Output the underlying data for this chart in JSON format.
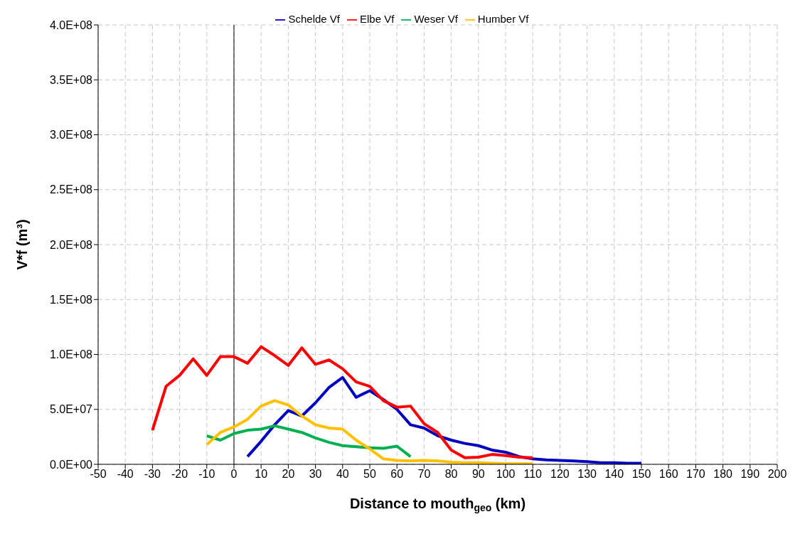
{
  "chart_data": {
    "type": "line",
    "xlabel": "Distance to mouth$_{geo}$ (km)",
    "ylabel": "V*f (m³)",
    "xlim": [
      -50,
      200
    ],
    "xticks": [
      -50,
      -40,
      -30,
      -20,
      -10,
      0,
      10,
      20,
      30,
      40,
      50,
      60,
      70,
      80,
      90,
      100,
      110,
      120,
      130,
      140,
      150,
      160,
      170,
      180,
      190,
      200
    ],
    "ylim": [
      0,
      400000000
    ],
    "yticks": [
      {
        "value": 0,
        "label": "0.0E+00"
      },
      {
        "value": 50000000,
        "label": "5.0E+07"
      },
      {
        "value": 100000000,
        "label": "1.0E+08"
      },
      {
        "value": 150000000,
        "label": "1.5E+08"
      },
      {
        "value": 200000000,
        "label": "2.0E+08"
      },
      {
        "value": 250000000,
        "label": "2.5E+08"
      },
      {
        "value": 300000000,
        "label": "3.0E+08"
      },
      {
        "value": 350000000,
        "label": "3.5E+08"
      },
      {
        "value": 400000000,
        "label": "4.0E+08"
      }
    ],
    "grid": true,
    "legend": "top",
    "marker": "none",
    "line_style": "solid",
    "ref_lines": [
      {
        "axis": "x",
        "value": 0,
        "color": "#000000",
        "line_style": "solid"
      }
    ],
    "series": [
      {
        "name": "Schelde Vf",
        "color": "#0000c0",
        "x": [
          5,
          10,
          15,
          20,
          25,
          30,
          35,
          40,
          45,
          50,
          55,
          60,
          65,
          70,
          75,
          80,
          85,
          90,
          95,
          100,
          105,
          110,
          115,
          120,
          125,
          130,
          135,
          140,
          145,
          150
        ],
        "values": [
          7000000,
          21000000,
          36000000,
          49000000,
          44000000,
          56000000,
          70000000,
          79000000,
          61000000,
          67000000,
          59000000,
          50000000,
          36000000,
          33000000,
          26000000,
          22000000,
          19000000,
          17000000,
          13000000,
          11000000,
          7000000,
          5000000,
          4000000,
          3500000,
          3000000,
          2500000,
          1500000,
          1500000,
          1000000,
          1000000
        ]
      },
      {
        "name": "Elbe Vf",
        "color": "#ff0000",
        "x": [
          -30,
          -25,
          -20,
          -15,
          -10,
          -5,
          0,
          5,
          10,
          15,
          20,
          25,
          30,
          35,
          40,
          45,
          50,
          55,
          60,
          65,
          70,
          75,
          80,
          85,
          90,
          95,
          100,
          105,
          110
        ],
        "values": [
          31000000,
          71000000,
          81000000,
          96000000,
          81000000,
          98000000,
          98000000,
          92000000,
          107000000,
          99000000,
          90000000,
          106000000,
          91000000,
          95000000,
          87000000,
          75000000,
          71000000,
          58000000,
          52000000,
          53000000,
          37000000,
          29000000,
          13000000,
          6000000,
          6500000,
          9000000,
          8000000,
          6500000,
          6000000
        ]
      },
      {
        "name": "Weser Vf",
        "color": "#00b050",
        "x": [
          -10,
          -5,
          0,
          5,
          10,
          15,
          20,
          25,
          30,
          35,
          40,
          45,
          50,
          55,
          60,
          65
        ],
        "values": [
          26000000,
          22000000,
          28000000,
          31000000,
          32000000,
          35000000,
          32000000,
          29000000,
          24000000,
          20000000,
          17000000,
          16000000,
          15000000,
          14500000,
          16500000,
          7000000
        ]
      },
      {
        "name": "Humber Vf",
        "color": "#ffc000",
        "x": [
          -10,
          -5,
          0,
          5,
          10,
          15,
          20,
          25,
          30,
          35,
          40,
          45,
          50,
          55,
          60,
          65,
          70,
          75,
          80,
          85,
          90,
          95,
          100,
          105,
          110
        ],
        "values": [
          18000000,
          29000000,
          34000000,
          41000000,
          53000000,
          58000000,
          54000000,
          44000000,
          36000000,
          33000000,
          32000000,
          22000000,
          14000000,
          5000000,
          3500000,
          3000000,
          3500000,
          3000000,
          2000000,
          1500000,
          1500000,
          1000000,
          500000,
          500000,
          500000
        ]
      }
    ]
  }
}
